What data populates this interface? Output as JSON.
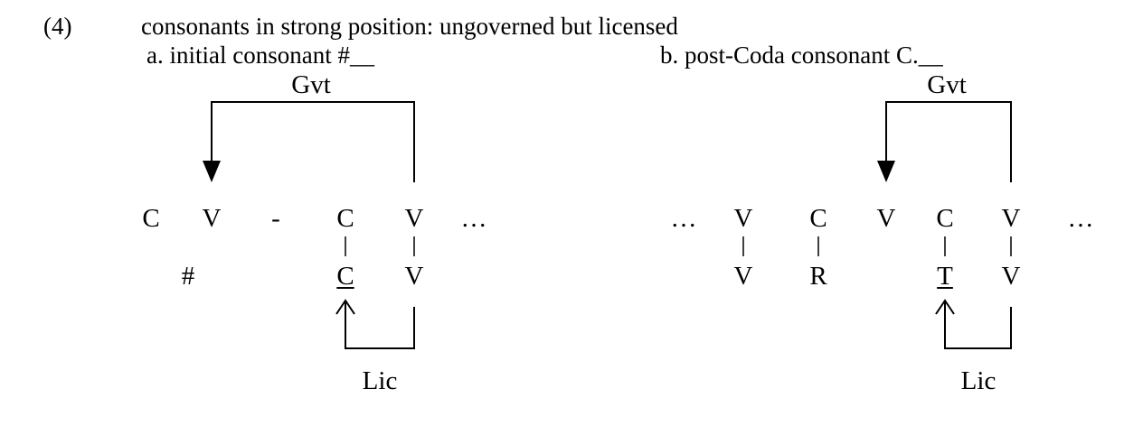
{
  "example_number": "(4)",
  "heading": "consonants in strong position: ungoverned but licensed",
  "panel_a": {
    "caption": "a. initial consonant  #__",
    "gvt_label": "Gvt",
    "lic_label": "Lic",
    "skeleton": [
      "C",
      "V",
      "-",
      "C",
      "V",
      "…"
    ],
    "melody": [
      "#",
      "C",
      "V"
    ]
  },
  "panel_b": {
    "caption": "b. post-Coda consonant  C.__",
    "gvt_label": "Gvt",
    "lic_label": "Lic",
    "skeleton": [
      "…",
      "V",
      "C",
      "V",
      "C",
      "V",
      "…"
    ],
    "melody": [
      "V",
      "R",
      "T",
      "V"
    ]
  }
}
